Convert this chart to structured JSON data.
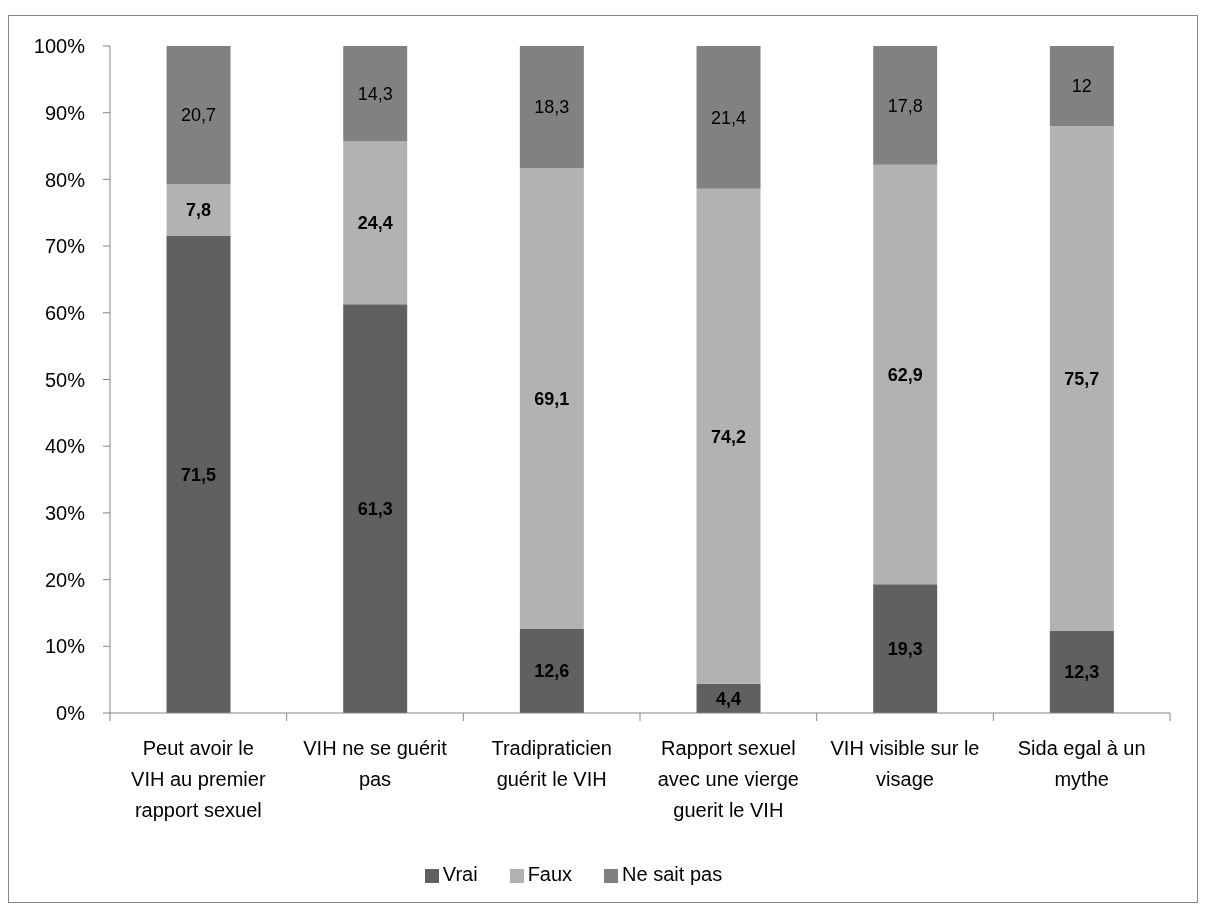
{
  "chart_data": {
    "type": "bar",
    "stacked": true,
    "categories": [
      "Peut avoir le VIH au premier rapport sexuel",
      "VIH ne se guérit pas",
      "Tradipraticien guérit le VIH",
      "Rapport sexuel avec une vierge guerit le VIH",
      "VIH visible sur le visage",
      "Sida egal à un mythe"
    ],
    "series": [
      {
        "name": "Vrai",
        "color": "#606060",
        "values": [
          71.5,
          61.3,
          12.6,
          4.4,
          19.3,
          12.3
        ],
        "value_labels": [
          "71,5",
          "61,3",
          "12,6",
          "4,4",
          "19,3",
          "12,3"
        ]
      },
      {
        "name": "Faux",
        "color": "#b2b2b2",
        "values": [
          7.8,
          24.4,
          69.1,
          74.2,
          62.9,
          75.7
        ],
        "value_labels": [
          "7,8",
          "24,4",
          "69,1",
          "74,2",
          "62,9",
          "75,7"
        ]
      },
      {
        "name": "Ne sait pas",
        "color": "#818181",
        "values": [
          20.7,
          14.3,
          18.3,
          21.4,
          17.8,
          12
        ],
        "value_labels": [
          "20,7",
          "14,3",
          "18,3",
          "21,4",
          "17,8",
          "12"
        ]
      }
    ],
    "ylim": [
      0,
      100
    ],
    "yticks": [
      {
        "value": 0,
        "label": "0%"
      },
      {
        "value": 10,
        "label": "10%"
      },
      {
        "value": 20,
        "label": "20%"
      },
      {
        "value": 30,
        "label": "30%"
      },
      {
        "value": 40,
        "label": "40%"
      },
      {
        "value": 50,
        "label": "50%"
      },
      {
        "value": 60,
        "label": "60%"
      },
      {
        "value": 70,
        "label": "70%"
      },
      {
        "value": 80,
        "label": "80%"
      },
      {
        "value": 90,
        "label": "90%"
      },
      {
        "value": 100,
        "label": "100%"
      }
    ],
    "grid": false,
    "legend": "bottom"
  }
}
